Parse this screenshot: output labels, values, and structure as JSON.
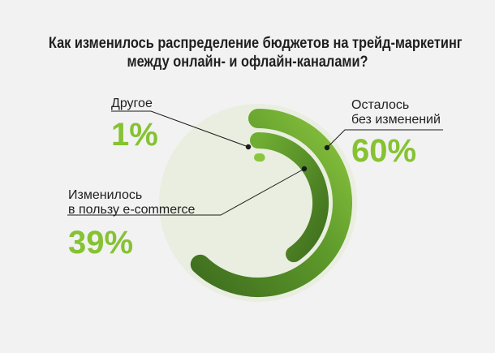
{
  "colors": {
    "background": "#f2f2f2",
    "circle_fill": "#e9eee0",
    "arc_light": "#8bc53f",
    "arc_dark": "#3f6e1e",
    "percent_text": "#86c232",
    "leader_line": "#1a1a1a"
  },
  "chart_data": {
    "type": "radial-bar",
    "title_lines": [
      "Как изменилось распределение бюджетов на трейд-маркетинг",
      "между онлайн- и офлайн-каналами?"
    ],
    "series": [
      {
        "label_lines": [
          "Осталось",
          "без изменений"
        ],
        "value": 60,
        "display": "60%"
      },
      {
        "label_lines": [
          "Изменилось",
          "в пользу e-commerce"
        ],
        "value": 39,
        "display": "39%"
      },
      {
        "label_lines": [
          "Другое"
        ],
        "value": 1,
        "display": "1%"
      }
    ]
  }
}
